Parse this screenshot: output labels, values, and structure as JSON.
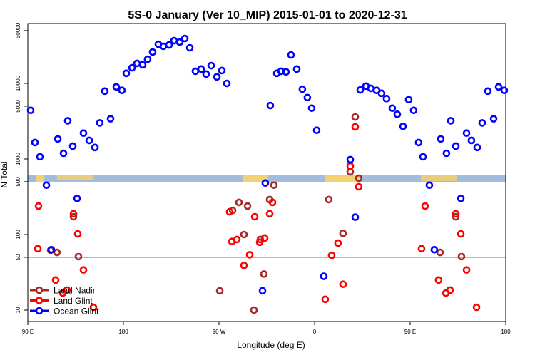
{
  "chart_data": {
    "type": "scatter",
    "title": "5S-0 January (Ver 10_MIP)   2015-01-01 to 2020-12-31",
    "xlabel": "Longitude (deg E)",
    "ylabel": "N Total",
    "xlim": [
      90,
      540
    ],
    "ylim": [
      8,
      55000
    ],
    "yscale": "log",
    "x_ticks": [
      {
        "value": 90,
        "label": "90 E"
      },
      {
        "value": 180,
        "label": "180"
      },
      {
        "value": 270,
        "label": "90 W"
      },
      {
        "value": 360,
        "label": "0"
      },
      {
        "value": 450,
        "label": "90 E"
      },
      {
        "value": 540,
        "label": "180"
      }
    ],
    "y_ticks": [
      {
        "value": 10,
        "label": "10"
      },
      {
        "value": 50,
        "label": "50"
      },
      {
        "value": 100,
        "label": "100"
      },
      {
        "value": 500,
        "label": "500"
      },
      {
        "value": 1000,
        "label": "1000"
      },
      {
        "value": 5000,
        "label": "5000"
      },
      {
        "value": 10000,
        "label": "10000"
      },
      {
        "value": 50000,
        "label": "50000"
      }
    ],
    "reference_line": 50,
    "legend_position": "bottom-left",
    "series": [
      {
        "name": "Land Nadir",
        "color": "#a52a2a",
        "points": [
          [
            111.5,
            62
          ],
          [
            117.5,
            58
          ],
          [
            133,
            172
          ],
          [
            137.7,
            51
          ],
          [
            270.7,
            18
          ],
          [
            282.8,
            209
          ],
          [
            288.8,
            266
          ],
          [
            293.5,
            100
          ],
          [
            296.9,
            238
          ],
          [
            302.9,
            10
          ],
          [
            308.9,
            86
          ],
          [
            312.3,
            30
          ],
          [
            317.7,
            290
          ],
          [
            321.7,
            450
          ],
          [
            373.4,
            290
          ],
          [
            386.8,
            104
          ],
          [
            393.6,
            676
          ],
          [
            401.6,
            556
          ],
          [
            398.3,
            3600
          ],
          [
            478.2,
            58
          ],
          [
            493,
            172
          ],
          [
            498.3,
            51
          ]
        ]
      },
      {
        "name": "Land Glint",
        "color": "#ff0000",
        "points": [
          [
            100.1,
            238
          ],
          [
            99.4,
            65
          ],
          [
            116.2,
            25
          ],
          [
            122.9,
            16.8
          ],
          [
            126.9,
            18.4
          ],
          [
            133,
            188
          ],
          [
            137,
            102
          ],
          [
            142.4,
            34
          ],
          [
            151.8,
            10.9
          ],
          [
            280,
            200
          ],
          [
            282.1,
            81
          ],
          [
            286.8,
            86
          ],
          [
            293.5,
            39
          ],
          [
            298.9,
            54
          ],
          [
            303.6,
            172
          ],
          [
            308.3,
            79
          ],
          [
            313,
            90
          ],
          [
            317.7,
            188
          ],
          [
            320.4,
            266
          ],
          [
            398.3,
            2660
          ],
          [
            401.6,
            429
          ],
          [
            370,
            13.9
          ],
          [
            376.1,
            53
          ],
          [
            382.1,
            77
          ],
          [
            386.8,
            22
          ],
          [
            393.6,
            805
          ],
          [
            464.1,
            238
          ],
          [
            460.7,
            65
          ],
          [
            476.8,
            25
          ],
          [
            483.6,
            16.8
          ],
          [
            487.6,
            18.4
          ],
          [
            493,
            188
          ],
          [
            497.7,
            102
          ],
          [
            503.1,
            34
          ],
          [
            512.5,
            10.9
          ]
        ]
      },
      {
        "name": "Ocean Glint",
        "color": "#0000ff",
        "points": [
          [
            92.7,
            4400
          ],
          [
            96.7,
            1650
          ],
          [
            101.4,
            1070
          ],
          [
            107.5,
            450
          ],
          [
            112.2,
            63
          ],
          [
            118.2,
            1840
          ],
          [
            123.6,
            1190
          ],
          [
            127.6,
            3200
          ],
          [
            132.3,
            1480
          ],
          [
            136.4,
            300
          ],
          [
            142.4,
            2200
          ],
          [
            147.8,
            1760
          ],
          [
            153.2,
            1420
          ],
          [
            157.8,
            3000
          ],
          [
            162.5,
            7900
          ],
          [
            167.9,
            3400
          ],
          [
            173.3,
            9000
          ],
          [
            178.6,
            8100
          ],
          [
            182.7,
            13600
          ],
          [
            188.1,
            16100
          ],
          [
            192.8,
            18400
          ],
          [
            198.1,
            17600
          ],
          [
            202.8,
            20900
          ],
          [
            207.5,
            26000
          ],
          [
            212.9,
            33000
          ],
          [
            217.6,
            31000
          ],
          [
            223,
            32300
          ],
          [
            227.7,
            36800
          ],
          [
            233,
            35200
          ],
          [
            237.8,
            39300
          ],
          [
            242.5,
            29600
          ],
          [
            247.8,
            14500
          ],
          [
            253.2,
            15500
          ],
          [
            257.9,
            13300
          ],
          [
            262.6,
            17200
          ],
          [
            268,
            12200
          ],
          [
            272.7,
            14800
          ],
          [
            277.4,
            10000
          ],
          [
            311,
            18
          ],
          [
            313.6,
            480
          ],
          [
            318.3,
            5100
          ],
          [
            324.4,
            13600
          ],
          [
            328.4,
            14500
          ],
          [
            333.1,
            14200
          ],
          [
            337.8,
            23800
          ],
          [
            343.2,
            15500
          ],
          [
            348.5,
            8400
          ],
          [
            353.2,
            6500
          ],
          [
            357.3,
            4700
          ],
          [
            362,
            2400
          ],
          [
            368.7,
            28
          ],
          [
            393.6,
            980
          ],
          [
            398.3,
            170
          ],
          [
            403,
            8200
          ],
          [
            408.3,
            9200
          ],
          [
            413,
            8600
          ],
          [
            418.4,
            8100
          ],
          [
            423.1,
            7400
          ],
          [
            427.8,
            6300
          ],
          [
            433.2,
            4700
          ],
          [
            437.9,
            3900
          ],
          [
            443.3,
            2700
          ],
          [
            448.6,
            6100
          ],
          [
            453.3,
            4400
          ],
          [
            458,
            1650
          ],
          [
            462.1,
            1070
          ],
          [
            468.1,
            450
          ],
          [
            472.8,
            63
          ],
          [
            478.8,
            1840
          ],
          [
            484.2,
            1190
          ],
          [
            488.3,
            3200
          ],
          [
            493,
            1480
          ],
          [
            497.7,
            300
          ],
          [
            503.1,
            2200
          ],
          [
            507.7,
            1760
          ],
          [
            513.1,
            1420
          ],
          [
            517.8,
            3000
          ],
          [
            523.2,
            7900
          ],
          [
            528.6,
            3400
          ],
          [
            533.3,
            9000
          ],
          [
            538.6,
            8100
          ]
        ]
      }
    ]
  }
}
